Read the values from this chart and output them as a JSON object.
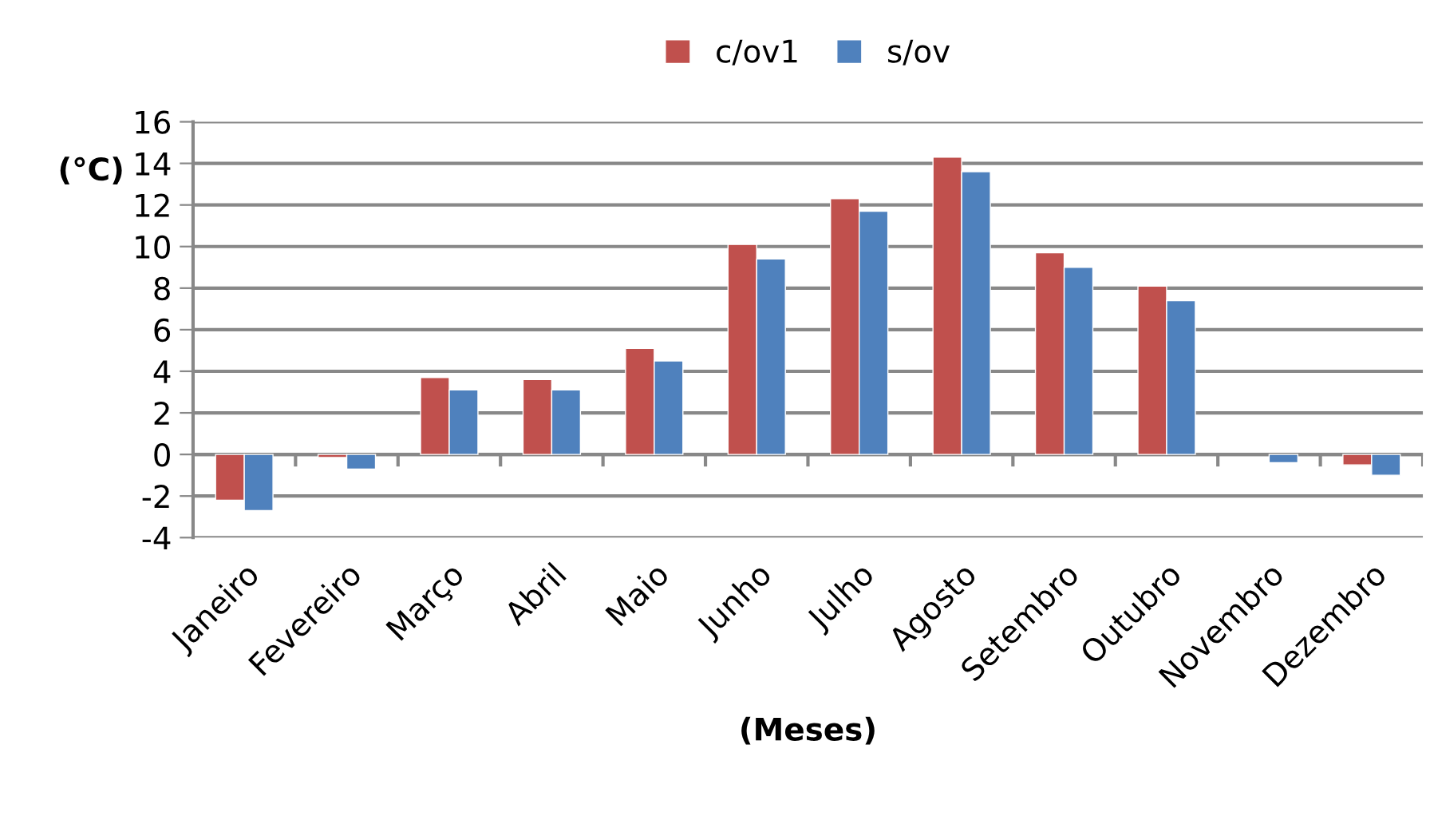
{
  "chart_data": {
    "type": "bar",
    "xlabel": "(Meses)",
    "ylabel": "(°C)",
    "categories": [
      "Janeiro",
      "Fevereiro",
      "Março",
      "Abril",
      "Maio",
      "Junho",
      "Julho",
      "Agosto",
      "Setembro",
      "Outubro",
      "Novembro",
      "Dezembro"
    ],
    "series": [
      {
        "name": "c/ov1",
        "color": "#c0504d",
        "values": [
          -2.2,
          -0.15,
          3.7,
          3.6,
          5.1,
          10.1,
          12.3,
          14.3,
          9.7,
          8.1,
          null,
          -0.5
        ]
      },
      {
        "name": "s/ov",
        "color": "#4f81bd",
        "values": [
          -2.7,
          -0.7,
          3.1,
          3.1,
          4.5,
          9.4,
          11.7,
          13.6,
          9.0,
          7.4,
          -0.4,
          -1.0
        ]
      }
    ],
    "ylim": [
      -4,
      16
    ],
    "yticks": [
      -4,
      -2,
      0,
      2,
      4,
      6,
      8,
      10,
      12,
      14,
      16
    ],
    "grid": "y",
    "legend": "top"
  }
}
